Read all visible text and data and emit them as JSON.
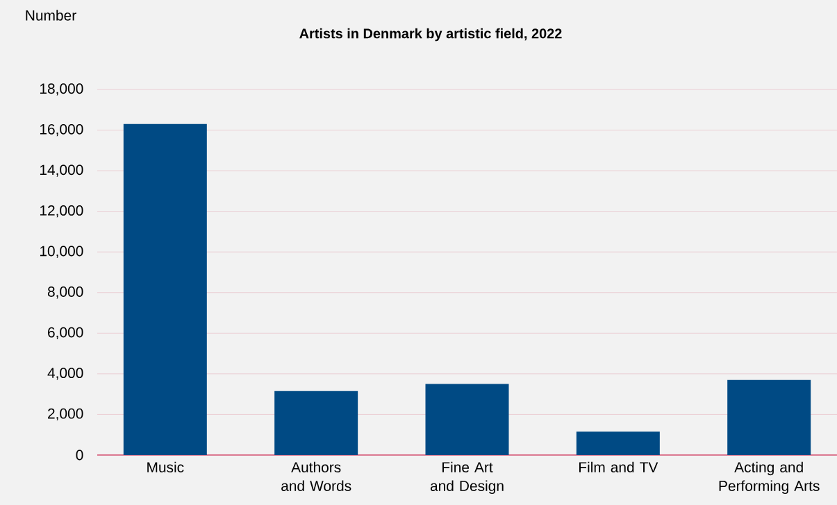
{
  "chart_data": {
    "type": "bar",
    "title": "Artists in Denmark by artistic field, 2022",
    "ylabel": "Number",
    "categories": [
      "Music",
      "Authors and Words",
      "Fine Art and Design",
      "Film and TV",
      "Acting and Performing Arts"
    ],
    "values": [
      16300,
      3150,
      3500,
      1150,
      3700
    ],
    "color": "#004a84",
    "ylim": [
      0,
      18000
    ],
    "yticks": [
      0,
      {
        "value": 2000,
        "label": "2,000"
      },
      {
        "value": 4000,
        "label": "4,000"
      },
      {
        "value": 6000,
        "label": "6,000"
      },
      {
        "value": 8000,
        "label": "8,000"
      },
      {
        "value": 10000,
        "label": "10,000"
      },
      {
        "value": 12000,
        "label": "12,000"
      },
      {
        "value": 14000,
        "label": "14,000"
      },
      {
        "value": 16000,
        "label": "16,000"
      },
      {
        "value": 18000,
        "label": "18,000"
      }
    ],
    "grid": "y"
  }
}
